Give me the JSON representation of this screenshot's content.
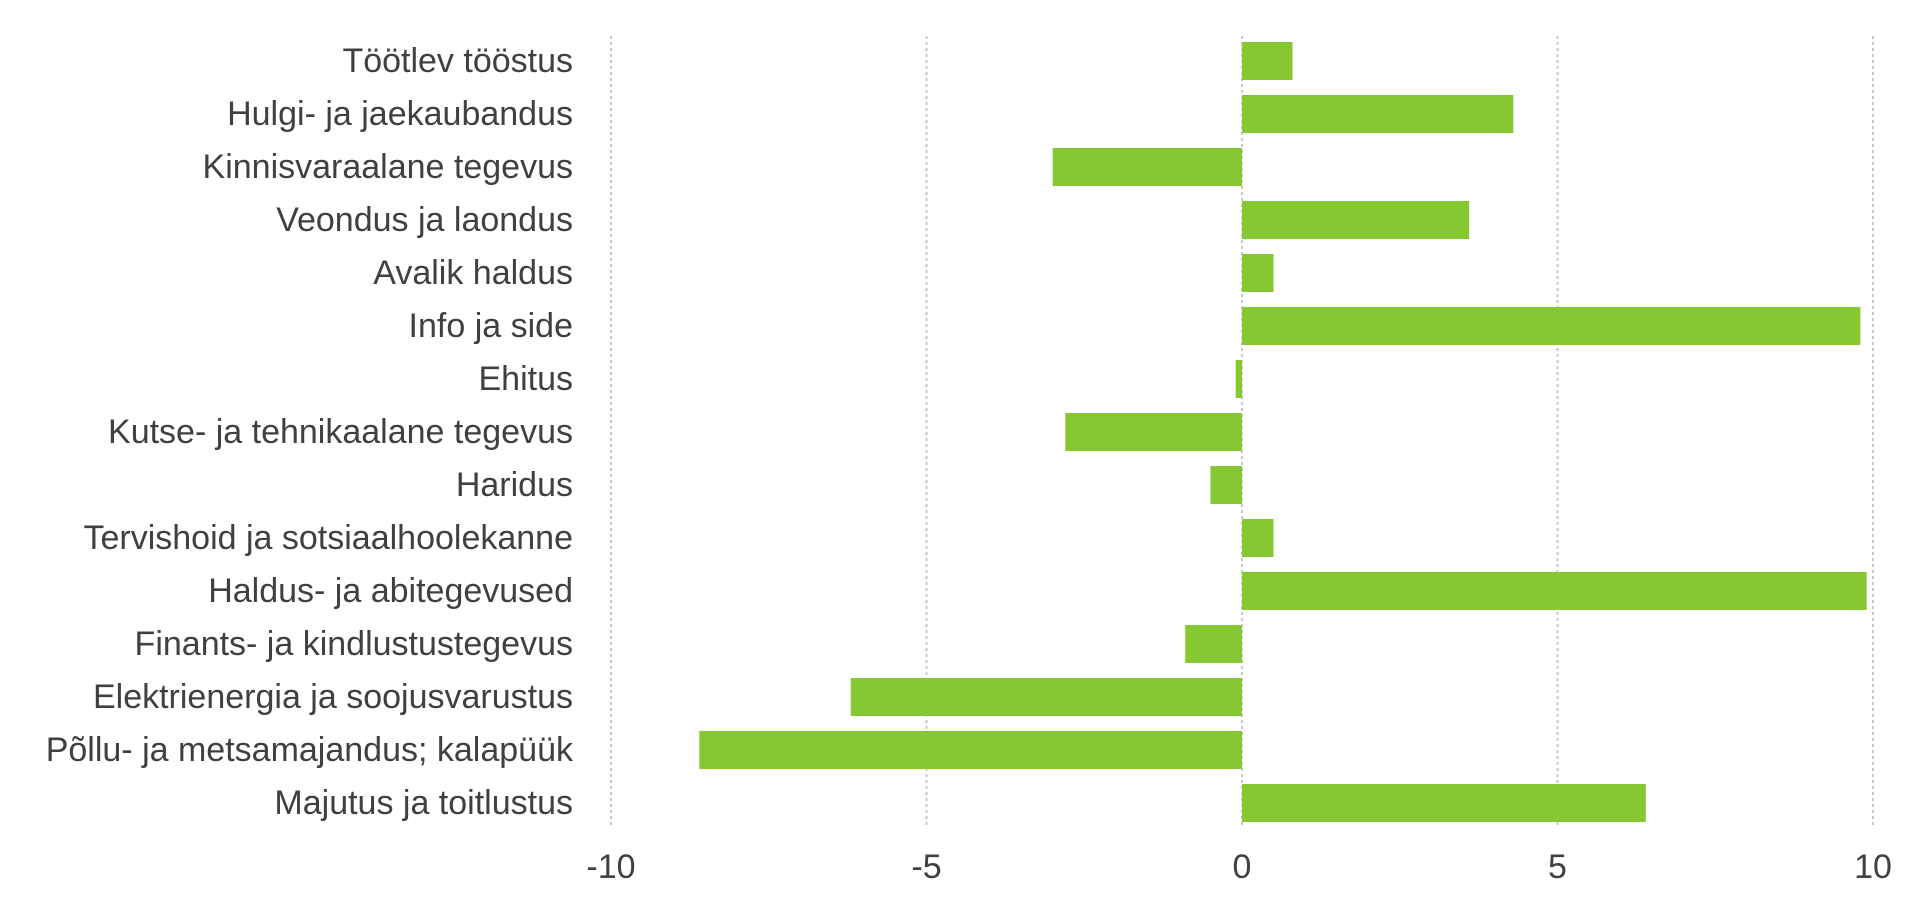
{
  "chart_data": {
    "type": "bar",
    "orientation": "horizontal",
    "categories": [
      "Töötlev tööstus",
      "Hulgi- ja jaekaubandus",
      "Kinnisvaraalane tegevus",
      "Veondus ja laondus",
      "Avalik haldus",
      "Info ja side",
      "Ehitus",
      "Kutse- ja tehnikaalane tegevus",
      "Haridus",
      "Tervishoid ja sotsiaalhoolekanne",
      "Haldus- ja abitegevused",
      "Finants- ja kindlustustegevus",
      "Elektrienergia ja soojusvarustus",
      "Põllu- ja metsamajandus; kalapüük",
      "Majutus ja toitlustus"
    ],
    "values": [
      0.8,
      4.3,
      -3.0,
      3.6,
      0.5,
      9.8,
      -0.1,
      -2.8,
      -0.5,
      0.5,
      9.9,
      -0.9,
      -6.2,
      -8.6,
      6.4
    ],
    "xlim": [
      -10,
      10
    ],
    "xticks": [
      "-10",
      "-5",
      "0",
      "5",
      "10"
    ],
    "title": "",
    "xlabel": "",
    "ylabel": "",
    "grid": "vertical dashed",
    "bar_color": "#86c832",
    "legend": "none"
  }
}
